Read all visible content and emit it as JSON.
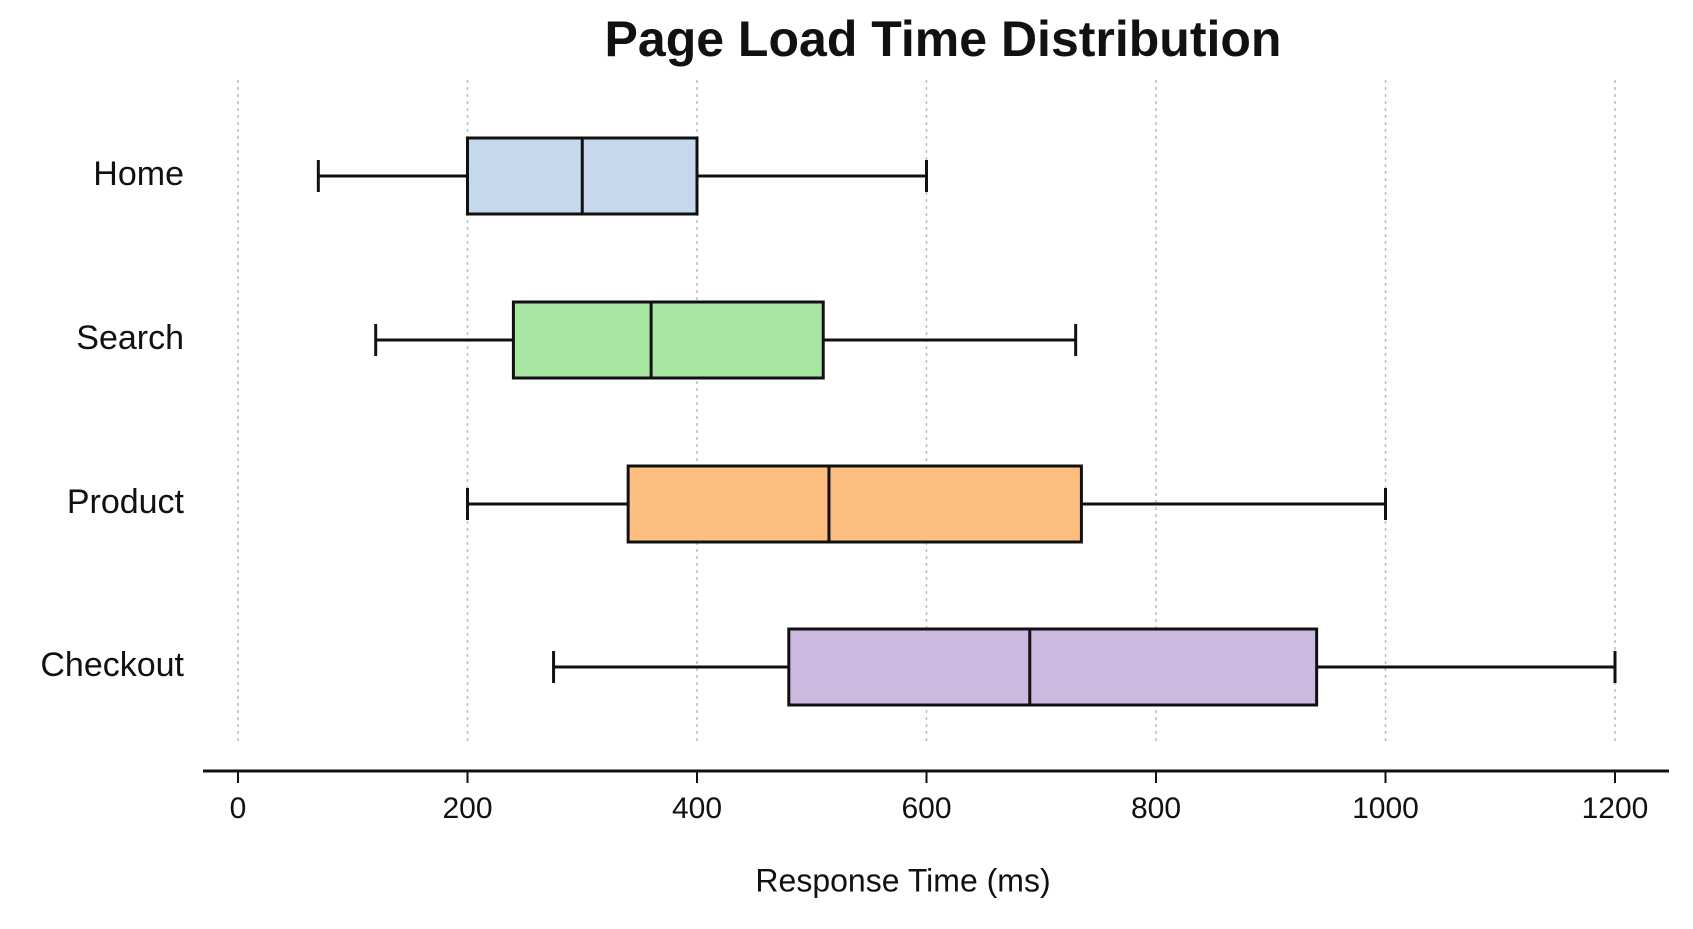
{
  "chart_data": {
    "type": "box",
    "title": "Page Load Time Distribution",
    "x_label": "Response Time (ms)",
    "categories": [
      "Home",
      "Search",
      "Product",
      "Checkout"
    ],
    "boxes": [
      {
        "low": 70,
        "q1": 200,
        "median": 300,
        "q3": 400,
        "high": 600
      },
      {
        "low": 120,
        "q1": 240,
        "median": 360,
        "q3": 510,
        "high": 730
      },
      {
        "low": 200,
        "q1": 340,
        "median": 515,
        "q3": 735,
        "high": 1000
      },
      {
        "low": 275,
        "q1": 480,
        "median": 690,
        "q3": 940,
        "high": 1200
      }
    ],
    "colors": [
      "#c6d9ec",
      "#a8e6a3",
      "#fdbf7f",
      "#cdb8e0"
    ],
    "xlim": [
      0,
      1200
    ],
    "xticks": [
      0,
      200,
      400,
      600,
      800,
      1000,
      1200
    ],
    "grid": true
  }
}
